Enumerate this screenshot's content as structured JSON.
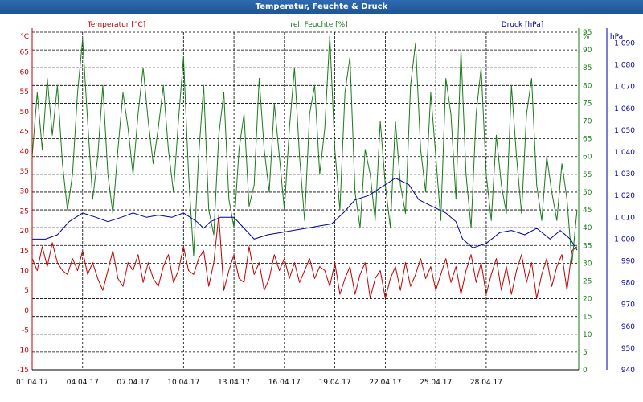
{
  "window": {
    "title": "Temperatur, Feuchte & Druck"
  },
  "chart_data": {
    "type": "line",
    "title": "Temperatur, Feuchte & Druck",
    "grid": true,
    "x_ticks": [
      "01.04.17",
      "04.04.17",
      "07.04.17",
      "10.04.17",
      "13.04.17",
      "16.04.17",
      "19.04.17",
      "22.04.17",
      "25.04.17",
      "28.04.17"
    ],
    "x_range_days": [
      0,
      32.5
    ],
    "axes": {
      "temperature": {
        "unit_label": "°C",
        "ylim": [
          -15,
          70
        ],
        "ticks": [
          -15,
          -10,
          -5,
          0,
          5,
          10,
          15,
          20,
          25,
          30,
          35,
          40,
          45,
          50,
          55,
          60,
          65
        ],
        "color": "#c00000"
      },
      "humidity": {
        "unit_label": "%",
        "ylim": [
          0,
          95
        ],
        "ticks": [
          0,
          5,
          10,
          15,
          20,
          25,
          30,
          35,
          40,
          45,
          50,
          55,
          60,
          65,
          70,
          75,
          80,
          85,
          90,
          95
        ],
        "color": "#1a7a1a"
      },
      "pressure": {
        "unit_label": "hPa",
        "ylim": [
          940,
          1095
        ],
        "ticks": [
          "940",
          "950",
          "960",
          "970",
          "980",
          "990",
          "1.000",
          "1.010",
          "1.020",
          "1.030",
          "1.040",
          "1.050",
          "1.060",
          "1.070",
          "1.080",
          "1.090"
        ],
        "color": "#0000a0"
      }
    },
    "series": [
      {
        "name": "Temperatur [°C]",
        "axis": "temperature",
        "color": "#c00000",
        "x": [
          0,
          0.3,
          0.6,
          0.9,
          1.2,
          1.5,
          1.8,
          2.1,
          2.4,
          2.7,
          3.0,
          3.3,
          3.6,
          3.9,
          4.2,
          4.5,
          4.8,
          5.1,
          5.4,
          5.7,
          6.0,
          6.3,
          6.6,
          6.9,
          7.2,
          7.5,
          7.8,
          8.1,
          8.4,
          8.7,
          9.0,
          9.3,
          9.6,
          9.9,
          10.2,
          10.5,
          10.8,
          11.1,
          11.4,
          11.7,
          12.0,
          12.3,
          12.6,
          12.9,
          13.2,
          13.5,
          13.8,
          14.1,
          14.4,
          14.7,
          15.0,
          15.3,
          15.6,
          15.9,
          16.2,
          16.5,
          16.8,
          17.1,
          17.4,
          17.7,
          18.0,
          18.3,
          18.6,
          18.9,
          19.2,
          19.5,
          19.8,
          20.1,
          20.4,
          20.7,
          21.0,
          21.3,
          21.6,
          21.9,
          22.2,
          22.5,
          22.8,
          23.1,
          23.4,
          23.7,
          24.0,
          24.3,
          24.6,
          24.9,
          25.2,
          25.5,
          25.8,
          26.1,
          26.4,
          26.7,
          27.0,
          27.3,
          27.6,
          27.9,
          28.2,
          28.5,
          28.8,
          29.1,
          29.4,
          29.7,
          30.0,
          30.3,
          30.6,
          30.9,
          31.2,
          31.5,
          31.8,
          32.1,
          32.4
        ],
        "values": [
          13,
          10,
          16,
          11,
          17,
          12,
          10,
          9,
          13,
          10,
          15,
          9,
          12,
          8,
          5,
          10,
          15,
          8,
          6,
          12,
          10,
          14,
          7,
          12,
          8,
          6,
          11,
          14,
          7,
          10,
          16,
          10,
          9,
          13,
          15,
          6,
          12,
          24,
          5,
          10,
          14,
          8,
          7,
          16,
          9,
          12,
          5,
          8,
          14,
          10,
          13,
          8,
          12,
          7,
          10,
          13,
          8,
          11,
          10,
          6,
          12,
          4,
          8,
          11,
          4,
          9,
          12,
          3,
          8,
          10,
          3,
          8,
          11,
          5,
          12,
          6,
          9,
          13,
          8,
          11,
          5,
          9,
          13,
          7,
          11,
          4,
          10,
          14,
          7,
          12,
          4,
          9,
          13,
          5,
          11,
          4,
          10,
          14,
          7,
          12,
          3,
          9,
          13,
          6,
          11,
          14,
          5,
          15,
          16
        ]
      },
      {
        "name": "rel. Feuchte [%]",
        "axis": "humidity",
        "color": "#1a7a1a",
        "x": [
          0,
          0.3,
          0.6,
          0.9,
          1.2,
          1.5,
          1.8,
          2.1,
          2.4,
          2.7,
          3.0,
          3.3,
          3.6,
          3.9,
          4.2,
          4.5,
          4.8,
          5.1,
          5.4,
          5.7,
          6.0,
          6.3,
          6.6,
          6.9,
          7.2,
          7.5,
          7.8,
          8.1,
          8.4,
          8.7,
          9.0,
          9.3,
          9.6,
          9.9,
          10.2,
          10.5,
          10.8,
          11.1,
          11.4,
          11.7,
          12.0,
          12.3,
          12.6,
          12.9,
          13.2,
          13.5,
          13.8,
          14.1,
          14.4,
          14.7,
          15.0,
          15.3,
          15.6,
          15.9,
          16.2,
          16.5,
          16.8,
          17.1,
          17.4,
          17.7,
          18.0,
          18.3,
          18.6,
          18.9,
          19.2,
          19.5,
          19.8,
          20.1,
          20.4,
          20.7,
          21.0,
          21.3,
          21.6,
          21.9,
          22.2,
          22.5,
          22.8,
          23.1,
          23.4,
          23.7,
          24.0,
          24.3,
          24.6,
          24.9,
          25.2,
          25.5,
          25.8,
          26.1,
          26.4,
          26.7,
          27.0,
          27.3,
          27.6,
          27.9,
          28.2,
          28.5,
          28.8,
          29.1,
          29.4,
          29.7,
          30.0,
          30.3,
          30.6,
          30.9,
          31.2,
          31.5,
          31.8,
          32.1,
          32.4
        ],
        "values": [
          60,
          78,
          62,
          82,
          66,
          80,
          58,
          45,
          55,
          78,
          93,
          70,
          48,
          60,
          80,
          55,
          44,
          62,
          78,
          68,
          55,
          72,
          85,
          70,
          58,
          68,
          80,
          62,
          50,
          70,
          88,
          55,
          32,
          60,
          80,
          45,
          38,
          66,
          78,
          48,
          40,
          62,
          72,
          46,
          52,
          82,
          62,
          50,
          75,
          60,
          45,
          68,
          85,
          60,
          42,
          72,
          80,
          55,
          68,
          94,
          62,
          45,
          78,
          88,
          50,
          40,
          62,
          55,
          42,
          70,
          52,
          40,
          70,
          52,
          44,
          80,
          92,
          62,
          50,
          78,
          60,
          42,
          82,
          72,
          48,
          90,
          55,
          40,
          72,
          85,
          55,
          42,
          66,
          52,
          44,
          80,
          60,
          44,
          72,
          82,
          52,
          42,
          60,
          50,
          42,
          58,
          48,
          30,
          45
        ]
      },
      {
        "name": "Druck [hPa]",
        "axis": "pressure",
        "color": "#0000a0",
        "x": [
          0,
          0.8,
          1.5,
          2.2,
          3.0,
          3.8,
          4.5,
          5.3,
          6.0,
          6.8,
          7.5,
          8.3,
          9.0,
          9.8,
          10.2,
          10.6,
          11.2,
          12.0,
          12.6,
          13.2,
          14.0,
          14.8,
          15.5,
          16.3,
          17.0,
          17.8,
          18.5,
          19.2,
          20.0,
          20.8,
          21.6,
          22.4,
          23.0,
          23.8,
          24.6,
          25.2,
          25.6,
          26.2,
          27.0,
          27.8,
          28.5,
          29.3,
          30.0,
          30.8,
          31.4,
          32.0,
          32.4
        ],
        "values": [
          1000,
          1000,
          1002,
          1008,
          1012,
          1010,
          1008,
          1010,
          1012,
          1010,
          1011,
          1010,
          1012,
          1008,
          1005,
          1008,
          1010,
          1010,
          1005,
          1000,
          1002,
          1003,
          1004,
          1005,
          1006,
          1007,
          1012,
          1018,
          1020,
          1024,
          1028,
          1025,
          1018,
          1015,
          1012,
          1008,
          1000,
          996,
          998,
          1003,
          1004,
          1002,
          1005,
          1000,
          1004,
          1000,
          995
        ]
      }
    ]
  }
}
